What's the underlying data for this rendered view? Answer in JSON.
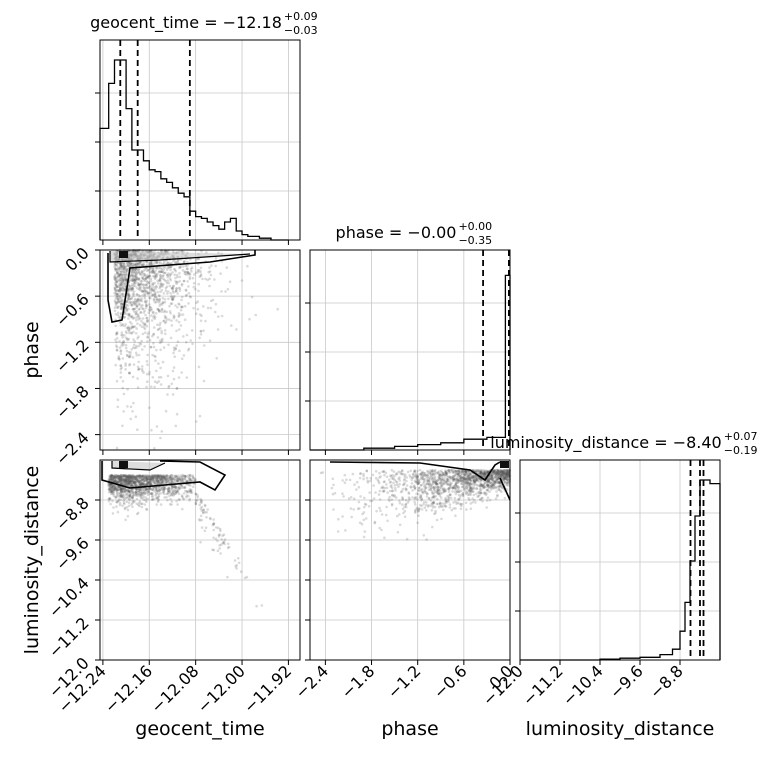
{
  "chart_data": {
    "type": "corner",
    "parameters": [
      "geocent_time",
      "phase",
      "luminosity_distance"
    ],
    "titles": [
      {
        "name": "geocent_time",
        "value": "−12.18",
        "plus": "+0.09",
        "minus": "−0.03"
      },
      {
        "name": "phase",
        "value": "−0.00",
        "plus": "+0.00",
        "minus": "−0.35"
      },
      {
        "name": "luminosity_distance",
        "value": "−8.40",
        "plus": "+0.07",
        "minus": "−0.19"
      }
    ],
    "ranges": {
      "geocent_time": [
        -12.245,
        -11.9
      ],
      "phase": [
        -2.6,
        0.0
      ],
      "luminosity_distance": [
        -12.0,
        -8.0
      ]
    },
    "ticks": {
      "geocent_time": [
        -12.24,
        -12.16,
        -12.08,
        -12.0,
        -11.92
      ],
      "phase": [
        -2.4,
        -1.8,
        -1.2,
        -0.6,
        0.0
      ],
      "luminosity_distance": [
        -12.0,
        -11.2,
        -10.4,
        -9.6,
        -8.8
      ]
    },
    "tick_labels": {
      "geocent_time": [
        "−12.24",
        "−12.16",
        "−12.08",
        "−12.00",
        "−11.92"
      ],
      "phase": [
        "−2.4",
        "−1.8",
        "−1.2",
        "−0.6",
        "0.0"
      ],
      "luminosity_distance": [
        "−12.0",
        "−11.2",
        "−10.4",
        "−9.6",
        "−8.8"
      ]
    },
    "quantiles": {
      "geocent_time": [
        -12.21,
        -12.18,
        -12.09
      ],
      "phase": [
        -0.35,
        0.0,
        0.0
      ],
      "luminosity_distance": [
        -8.59,
        -8.4,
        -8.33
      ]
    },
    "histograms": {
      "geocent_time": {
        "edges": [
          -12.245,
          -12.23,
          -12.22,
          -12.21,
          -12.2,
          -12.19,
          -12.18,
          -12.17,
          -12.16,
          -12.15,
          -12.14,
          -12.13,
          -12.12,
          -12.11,
          -12.1,
          -12.09,
          -12.08,
          -12.07,
          -12.06,
          -12.05,
          -12.04,
          -12.03,
          -12.02,
          -12.01,
          -12.0,
          -11.99,
          -11.98,
          -11.97,
          -11.96,
          -11.95,
          -11.94,
          -11.93,
          -11.92
        ],
        "values": [
          0.62,
          0.87,
          1.0,
          1.0,
          0.73,
          0.5,
          0.5,
          0.44,
          0.39,
          0.38,
          0.34,
          0.32,
          0.29,
          0.26,
          0.24,
          0.16,
          0.13,
          0.12,
          0.1,
          0.08,
          0.06,
          0.1,
          0.12,
          0.05,
          0.03,
          0.02,
          0.02,
          0.01,
          0.01,
          0.0,
          0.0,
          0.0
        ]
      },
      "phase": {
        "edges": [
          -2.6,
          -1.9,
          -1.5,
          -1.2,
          -0.9,
          -0.6,
          -0.3,
          -0.06,
          0.0
        ],
        "values": [
          0.0,
          0.01,
          0.02,
          0.03,
          0.04,
          0.06,
          0.07,
          0.97
        ]
      },
      "luminosity_distance": {
        "edges": [
          -12.0,
          -10.4,
          -10.0,
          -9.6,
          -9.2,
          -8.95,
          -8.8,
          -8.7,
          -8.6,
          -8.5,
          -8.4,
          -8.2,
          -8.0
        ],
        "values": [
          0.0,
          0.005,
          0.01,
          0.015,
          0.03,
          0.06,
          0.16,
          0.32,
          0.55,
          0.8,
          1.0,
          0.98
        ]
      }
    },
    "grid": true,
    "legend": "none"
  }
}
